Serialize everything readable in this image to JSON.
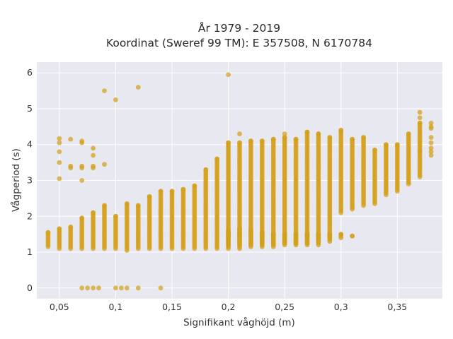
{
  "chart_data": {
    "type": "scatter",
    "title_line1": "År 1979 - 2019",
    "title_line2": "Koordinat (Sweref 99 TM): E 357508, N 6170784",
    "xlabel": "Signifikant våghöjd (m)",
    "ylabel": "Vågperiod (s)",
    "xlim": [
      0.03,
      0.39
    ],
    "ylim": [
      -0.3,
      6.3
    ],
    "x_ticks": [
      0.05,
      0.1,
      0.15,
      0.2,
      0.25,
      0.3,
      0.35
    ],
    "x_tick_labels": [
      "0,05",
      "0,1",
      "0,15",
      "0,2",
      "0,25",
      "0,3",
      "0,35"
    ],
    "y_ticks": [
      0,
      1,
      2,
      3,
      4,
      5,
      6
    ],
    "y_tick_labels": [
      "0",
      "1",
      "2",
      "3",
      "4",
      "5",
      "6"
    ],
    "grid": true,
    "background": "#e8e8f0",
    "marker_color": "#d4a017",
    "columns": [
      {
        "x": 0.04,
        "ymin": 1.15,
        "ymax": 1.55
      },
      {
        "x": 0.05,
        "ymin": 1.1,
        "ymax": 1.65
      },
      {
        "x": 0.06,
        "ymin": 1.1,
        "ymax": 1.7
      },
      {
        "x": 0.07,
        "ymin": 1.1,
        "ymax": 1.95
      },
      {
        "x": 0.08,
        "ymin": 1.1,
        "ymax": 2.1
      },
      {
        "x": 0.09,
        "ymin": 1.1,
        "ymax": 2.3
      },
      {
        "x": 0.1,
        "ymin": 1.1,
        "ymax": 2.0
      },
      {
        "x": 0.11,
        "ymin": 1.05,
        "ymax": 2.35
      },
      {
        "x": 0.12,
        "ymin": 1.1,
        "ymax": 2.3
      },
      {
        "x": 0.13,
        "ymin": 1.1,
        "ymax": 2.55
      },
      {
        "x": 0.14,
        "ymin": 1.1,
        "ymax": 2.7
      },
      {
        "x": 0.15,
        "ymin": 1.1,
        "ymax": 2.7
      },
      {
        "x": 0.16,
        "ymin": 1.1,
        "ymax": 2.75
      },
      {
        "x": 0.17,
        "ymin": 1.1,
        "ymax": 2.85
      },
      {
        "x": 0.18,
        "ymin": 1.1,
        "ymax": 3.3
      },
      {
        "x": 0.19,
        "ymin": 1.1,
        "ymax": 3.6
      },
      {
        "x": 0.2,
        "ymin": 1.1,
        "ymax": 4.05
      },
      {
        "x": 0.21,
        "ymin": 1.1,
        "ymax": 4.05
      },
      {
        "x": 0.22,
        "ymin": 1.15,
        "ymax": 4.1
      },
      {
        "x": 0.23,
        "ymin": 1.15,
        "ymax": 4.1
      },
      {
        "x": 0.24,
        "ymin": 1.15,
        "ymax": 4.15
      },
      {
        "x": 0.25,
        "ymin": 1.2,
        "ymax": 4.2
      },
      {
        "x": 0.26,
        "ymin": 1.2,
        "ymax": 4.15
      },
      {
        "x": 0.27,
        "ymin": 1.2,
        "ymax": 4.35
      },
      {
        "x": 0.28,
        "ymin": 1.2,
        "ymax": 4.3
      },
      {
        "x": 0.29,
        "ymin": 1.3,
        "ymax": 4.2
      },
      {
        "x": 0.3,
        "ymin": 2.1,
        "ymax": 4.4
      },
      {
        "x": 0.31,
        "ymin": 2.2,
        "ymax": 4.15
      },
      {
        "x": 0.32,
        "ymin": 2.3,
        "ymax": 4.2
      },
      {
        "x": 0.33,
        "ymin": 2.35,
        "ymax": 3.85
      },
      {
        "x": 0.34,
        "ymin": 2.6,
        "ymax": 4.0
      },
      {
        "x": 0.35,
        "ymin": 2.7,
        "ymax": 4.0
      },
      {
        "x": 0.36,
        "ymin": 2.9,
        "ymax": 4.3
      },
      {
        "x": 0.37,
        "ymin": 3.1,
        "ymax": 4.6
      }
    ],
    "low_clusters": [
      {
        "x": 0.2,
        "ymin": 1.2,
        "ymax": 1.6
      },
      {
        "x": 0.21,
        "ymin": 1.2,
        "ymax": 1.65
      },
      {
        "x": 0.22,
        "ymin": 1.2,
        "ymax": 1.6
      },
      {
        "x": 0.23,
        "ymin": 1.2,
        "ymax": 1.55
      },
      {
        "x": 0.24,
        "ymin": 1.2,
        "ymax": 1.5
      },
      {
        "x": 0.25,
        "ymin": 1.25,
        "ymax": 1.5
      },
      {
        "x": 0.26,
        "ymin": 1.25,
        "ymax": 1.5
      },
      {
        "x": 0.27,
        "ymin": 1.25,
        "ymax": 1.5
      },
      {
        "x": 0.28,
        "ymin": 1.3,
        "ymax": 1.5
      },
      {
        "x": 0.29,
        "ymin": 1.4,
        "ymax": 1.5
      },
      {
        "x": 0.3,
        "ymin": 1.4,
        "ymax": 1.5
      },
      {
        "x": 0.31,
        "ymin": 1.45,
        "ymax": 1.45
      }
    ],
    "points": [
      {
        "x": 0.05,
        "y": 4.17
      },
      {
        "x": 0.05,
        "y": 4.05
      },
      {
        "x": 0.05,
        "y": 3.8
      },
      {
        "x": 0.05,
        "y": 3.5
      },
      {
        "x": 0.05,
        "y": 3.05
      },
      {
        "x": 0.06,
        "y": 4.15
      },
      {
        "x": 0.06,
        "y": 3.4
      },
      {
        "x": 0.06,
        "y": 3.35
      },
      {
        "x": 0.07,
        "y": 4.1
      },
      {
        "x": 0.07,
        "y": 4.05
      },
      {
        "x": 0.07,
        "y": 3.4
      },
      {
        "x": 0.07,
        "y": 3.35
      },
      {
        "x": 0.07,
        "y": 3.0
      },
      {
        "x": 0.08,
        "y": 3.9
      },
      {
        "x": 0.08,
        "y": 3.7
      },
      {
        "x": 0.08,
        "y": 3.4
      },
      {
        "x": 0.08,
        "y": 3.35
      },
      {
        "x": 0.09,
        "y": 3.45
      },
      {
        "x": 0.09,
        "y": 5.5
      },
      {
        "x": 0.1,
        "y": 5.25
      },
      {
        "x": 0.12,
        "y": 5.6
      },
      {
        "x": 0.2,
        "y": 5.95
      },
      {
        "x": 0.21,
        "y": 4.3
      },
      {
        "x": 0.25,
        "y": 4.3
      },
      {
        "x": 0.07,
        "y": 0.0
      },
      {
        "x": 0.075,
        "y": 0.0
      },
      {
        "x": 0.08,
        "y": 0.0
      },
      {
        "x": 0.085,
        "y": 0.0
      },
      {
        "x": 0.1,
        "y": 0.0
      },
      {
        "x": 0.105,
        "y": 0.0
      },
      {
        "x": 0.11,
        "y": 0.0
      },
      {
        "x": 0.12,
        "y": 0.0
      },
      {
        "x": 0.14,
        "y": 0.0
      },
      {
        "x": 0.38,
        "y": 4.6
      },
      {
        "x": 0.38,
        "y": 4.5
      },
      {
        "x": 0.38,
        "y": 4.45
      },
      {
        "x": 0.38,
        "y": 4.2
      },
      {
        "x": 0.38,
        "y": 4.05
      },
      {
        "x": 0.38,
        "y": 3.9
      },
      {
        "x": 0.38,
        "y": 3.8
      },
      {
        "x": 0.38,
        "y": 3.7
      },
      {
        "x": 0.37,
        "y": 4.75
      },
      {
        "x": 0.37,
        "y": 4.9
      },
      {
        "x": 0.37,
        "y": 3.8
      }
    ]
  }
}
